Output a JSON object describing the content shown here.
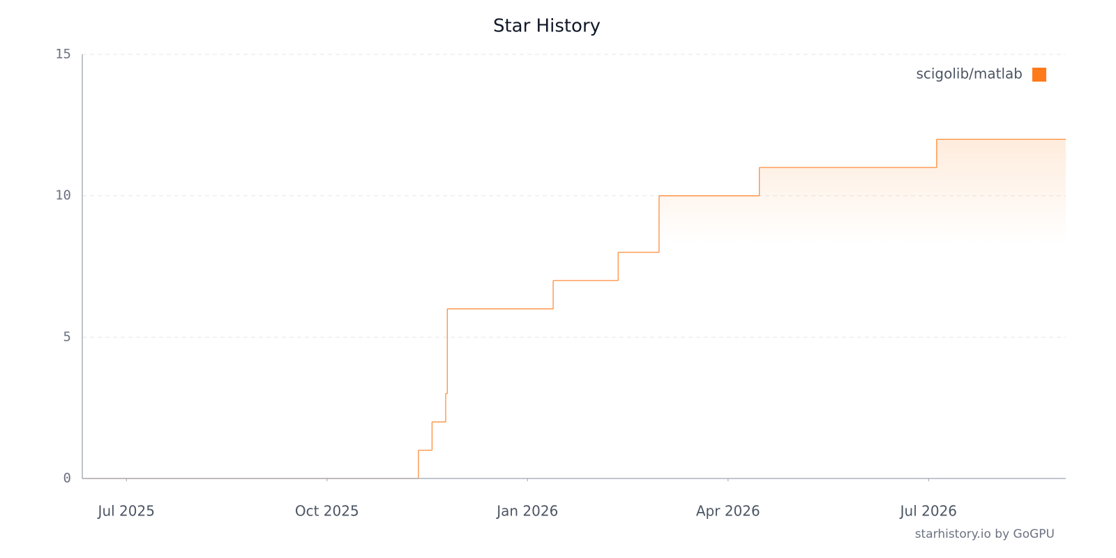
{
  "chart_data": {
    "type": "line",
    "title": "Star History",
    "x": [
      2025.445,
      2025.864,
      2025.881,
      2025.898,
      2025.9,
      2026.032,
      2026.113,
      2026.164,
      2026.289,
      2026.51,
      2026.671
    ],
    "series": [
      {
        "name": "scigolib/matlab",
        "color": "#ff7a1a",
        "values": [
          0,
          1,
          2,
          3,
          6,
          7,
          8,
          10,
          11,
          12,
          12
        ]
      }
    ],
    "xlim": [
      2025.445,
      2026.671
    ],
    "xticks": [
      {
        "value": 2025.5,
        "label": "Jul 2025"
      },
      {
        "value": 2025.75,
        "label": "Oct 2025"
      },
      {
        "value": 2026.0,
        "label": "Jan 2026"
      },
      {
        "value": 2026.25,
        "label": "Apr 2026"
      },
      {
        "value": 2026.5,
        "label": "Jul 2026"
      }
    ],
    "ylim": [
      0,
      15
    ],
    "yticks": [
      0,
      5,
      10,
      15
    ],
    "grid": true,
    "step": true,
    "legend": "top-right"
  },
  "footer": "starhistory.io by GoGPU"
}
